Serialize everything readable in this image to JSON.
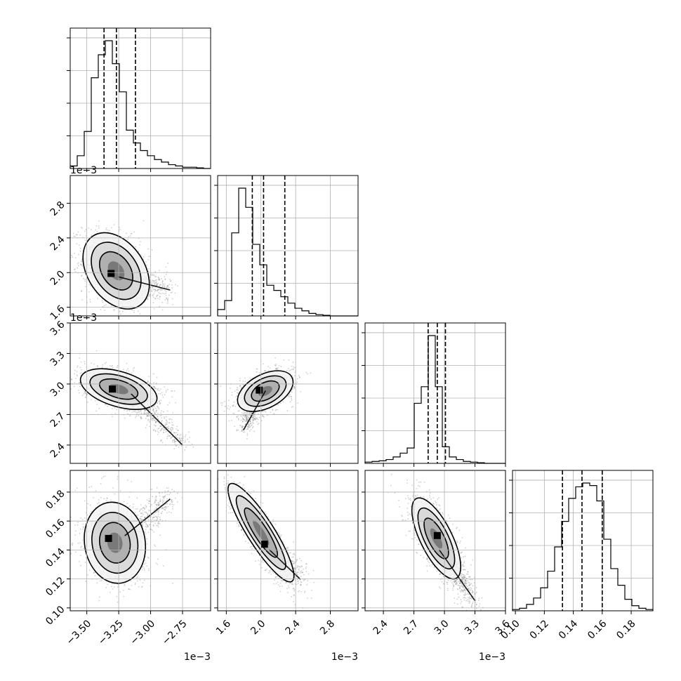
{
  "chart_data": {
    "type": "corner",
    "grid": true,
    "parameters": [
      {
        "range": [
          -3.63,
          -2.53
        ],
        "ticks": [
          -3.5,
          -3.25,
          -3.0,
          -2.75
        ],
        "tick_labels": [
          "−3.50",
          "−3.25",
          "−3.00",
          "−2.75"
        ],
        "offset_label": "1e−3",
        "quantiles": [
          -3.365,
          -3.268,
          -3.119
        ],
        "hist": [
          0.02,
          0.1,
          0.29,
          0.71,
          0.89,
          1.0,
          0.82,
          0.6,
          0.3,
          0.2,
          0.14,
          0.1,
          0.07,
          0.05,
          0.03,
          0.02,
          0.01,
          0.01,
          0.005,
          0.0
        ]
      },
      {
        "range": [
          1.5,
          3.12
        ],
        "ticks": [
          1.6,
          2.0,
          2.4,
          2.8
        ],
        "tick_labels": [
          "1.6",
          "2.0",
          "2.4",
          "2.8"
        ],
        "offset_label": "1e−3",
        "quantiles": [
          1.9,
          2.03,
          2.275
        ],
        "hist": [
          0.05,
          0.12,
          0.65,
          1.0,
          0.85,
          0.56,
          0.4,
          0.24,
          0.2,
          0.15,
          0.1,
          0.06,
          0.04,
          0.02,
          0.01,
          0.005,
          0.0,
          0.0,
          0.0,
          0.0
        ]
      },
      {
        "range": [
          2.22,
          3.6
        ],
        "ticks": [
          2.4,
          2.7,
          3.0,
          3.3,
          3.6
        ],
        "tick_labels": [
          "2.4",
          "2.7",
          "3.0",
          "3.3",
          "3.6"
        ],
        "offset_label": "1e−3",
        "quantiles": [
          2.84,
          2.93,
          3.01
        ],
        "hist": [
          0.01,
          0.015,
          0.02,
          0.03,
          0.05,
          0.08,
          0.12,
          0.47,
          0.6,
          1.0,
          0.6,
          0.13,
          0.05,
          0.03,
          0.015,
          0.01,
          0.005,
          0.0,
          0.0,
          0.0
        ]
      },
      {
        "range": [
          0.098,
          0.195
        ],
        "ticks": [
          0.1,
          0.12,
          0.14,
          0.16,
          0.18
        ],
        "tick_labels": [
          "0.10",
          "0.12",
          "0.14",
          "0.16",
          "0.18"
        ],
        "offset_label": "",
        "quantiles": [
          0.1325,
          0.146,
          0.16
        ],
        "hist": [
          0.01,
          0.02,
          0.05,
          0.1,
          0.18,
          0.31,
          0.5,
          0.7,
          0.88,
          0.97,
          1.0,
          0.98,
          0.86,
          0.56,
          0.33,
          0.2,
          0.09,
          0.04,
          0.02,
          0.01
        ]
      }
    ],
    "pairs": [
      {
        "x": 0,
        "y": 1,
        "mean": [
          -3.27,
          2.02
        ],
        "sigma": [
          0.13,
          0.22
        ],
        "rho": -0.35,
        "tail": {
          "from": [
            -3.25,
            1.95
          ],
          "to": [
            -2.85,
            1.8
          ]
        },
        "peak": [
          -3.31,
          1.99
        ]
      },
      {
        "x": 0,
        "y": 2,
        "mean": [
          -3.25,
          2.95
        ],
        "sigma": [
          0.15,
          0.1
        ],
        "rho": -0.45,
        "tail": {
          "from": [
            -3.15,
            2.9
          ],
          "to": [
            -2.75,
            2.4
          ]
        },
        "peak": [
          -3.3,
          2.95
        ]
      },
      {
        "x": 1,
        "y": 2,
        "mean": [
          2.05,
          2.93
        ],
        "sigma": [
          0.16,
          0.1
        ],
        "rho": 0.45,
        "tail": {
          "from": [
            2.05,
            2.93
          ],
          "to": [
            1.8,
            2.55
          ]
        },
        "peak": [
          1.98,
          2.94
        ]
      },
      {
        "x": 0,
        "y": 3,
        "mean": [
          -3.28,
          0.145
        ],
        "sigma": [
          0.12,
          0.014
        ],
        "rho": -0.1,
        "tail": {
          "from": [
            -3.2,
            0.15
          ],
          "to": [
            -2.85,
            0.175
          ]
        },
        "peak": [
          -3.33,
          0.148
        ]
      },
      {
        "x": 1,
        "y": 3,
        "mean": [
          2.0,
          0.152
        ],
        "sigma": [
          0.19,
          0.017
        ],
        "rho": -0.88,
        "tail": {
          "from": [
            2.1,
            0.14
          ],
          "to": [
            2.45,
            0.12
          ]
        },
        "peak": [
          2.04,
          0.144
        ]
      },
      {
        "x": 2,
        "y": 3,
        "mean": [
          2.92,
          0.148
        ],
        "sigma": [
          0.12,
          0.014
        ],
        "rho": -0.7,
        "tail": {
          "from": [
            2.95,
            0.14
          ],
          "to": [
            3.3,
            0.105
          ]
        },
        "peak": [
          2.93,
          0.15
        ]
      }
    ]
  }
}
